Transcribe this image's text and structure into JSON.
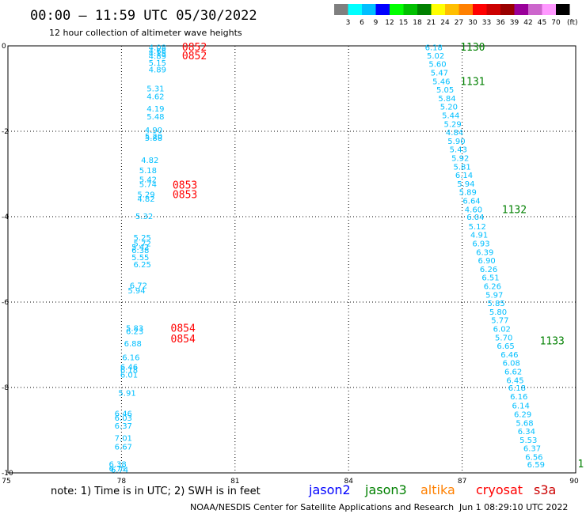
{
  "header": {
    "title": "00:00 – 11:59 UTC 05/30/2022",
    "subtitle": "12 hour collection of altimeter wave heights"
  },
  "colorbar": {
    "unit_label": "(ft)",
    "ticks": [
      "3",
      "6",
      "9",
      "12",
      "15",
      "18",
      "21",
      "24",
      "27",
      "30",
      "33",
      "36",
      "39",
      "42",
      "45",
      "70"
    ],
    "colors": [
      "#7f7f7f",
      "#00ffff",
      "#00bfff",
      "#0000ff",
      "#00ff00",
      "#00c000",
      "#008000",
      "#ffff00",
      "#ffbf00",
      "#ff8000",
      "#ff0000",
      "#cc0000",
      "#990000",
      "#990099",
      "#cc66cc",
      "#ff99ff",
      "#000000"
    ]
  },
  "chart_data": {
    "type": "scatter",
    "xlim": [
      75,
      90
    ],
    "ylim": [
      -10,
      0
    ],
    "x_ticks": [
      "75",
      "78",
      "81",
      "84",
      "87",
      "90"
    ],
    "y_ticks": [
      "0",
      "-2",
      "-4",
      "-6",
      "-8",
      "-10"
    ],
    "grid": true,
    "value_color": "#00bfff",
    "points": [
      {
        "x": 78.95,
        "y": -0.03,
        "v": "4.08"
      },
      {
        "x": 78.95,
        "y": -0.11,
        "v": "4.68"
      },
      {
        "x": 78.95,
        "y": -0.17,
        "v": "4.15"
      },
      {
        "x": 78.95,
        "y": -0.23,
        "v": "4.89"
      },
      {
        "x": 78.95,
        "y": -0.39,
        "v": "5.15"
      },
      {
        "x": 78.95,
        "y": -0.55,
        "v": "4.89"
      },
      {
        "x": 78.9,
        "y": -0.99,
        "v": "5.31"
      },
      {
        "x": 78.9,
        "y": -1.18,
        "v": "4.62"
      },
      {
        "x": 78.9,
        "y": -1.46,
        "v": "4.19"
      },
      {
        "x": 78.9,
        "y": -1.65,
        "v": "5.48"
      },
      {
        "x": 78.85,
        "y": -1.96,
        "v": "4.90"
      },
      {
        "x": 78.85,
        "y": -2.11,
        "v": "5.20"
      },
      {
        "x": 78.85,
        "y": -2.15,
        "v": "5.88"
      },
      {
        "x": 78.75,
        "y": -2.67,
        "v": "4.82"
      },
      {
        "x": 78.7,
        "y": -2.91,
        "v": "5.18"
      },
      {
        "x": 78.7,
        "y": -3.12,
        "v": "5.42"
      },
      {
        "x": 78.7,
        "y": -3.23,
        "v": "5.74"
      },
      {
        "x": 78.65,
        "y": -3.47,
        "v": "5.29"
      },
      {
        "x": 78.65,
        "y": -3.57,
        "v": "4.82"
      },
      {
        "x": 78.6,
        "y": -3.98,
        "v": "5.32"
      },
      {
        "x": 78.55,
        "y": -4.48,
        "v": "5.25"
      },
      {
        "x": 78.55,
        "y": -4.62,
        "v": "5.72"
      },
      {
        "x": 78.5,
        "y": -4.7,
        "v": "5.42"
      },
      {
        "x": 78.5,
        "y": -4.78,
        "v": "6.38"
      },
      {
        "x": 78.5,
        "y": -4.94,
        "v": "5.55"
      },
      {
        "x": 78.55,
        "y": -5.11,
        "v": "6.25"
      },
      {
        "x": 78.45,
        "y": -5.6,
        "v": "6.72"
      },
      {
        "x": 78.4,
        "y": -5.72,
        "v": "5.94"
      },
      {
        "x": 78.35,
        "y": -6.6,
        "v": "5.83"
      },
      {
        "x": 78.35,
        "y": -6.68,
        "v": "6.23"
      },
      {
        "x": 78.3,
        "y": -6.96,
        "v": "6.88"
      },
      {
        "x": 78.25,
        "y": -7.29,
        "v": "6.16"
      },
      {
        "x": 78.2,
        "y": -7.51,
        "v": "6.46"
      },
      {
        "x": 78.2,
        "y": -7.58,
        "v": "6.18"
      },
      {
        "x": 78.2,
        "y": -7.69,
        "v": "6.01"
      },
      {
        "x": 78.15,
        "y": -8.12,
        "v": "5.91"
      },
      {
        "x": 78.05,
        "y": -8.6,
        "v": "6.46"
      },
      {
        "x": 78.05,
        "y": -8.7,
        "v": "6.03"
      },
      {
        "x": 78.05,
        "y": -8.89,
        "v": "6.37"
      },
      {
        "x": 78.05,
        "y": -9.18,
        "v": "7.01"
      },
      {
        "x": 78.05,
        "y": -9.38,
        "v": "6.67"
      },
      {
        "x": 77.9,
        "y": -9.79,
        "v": "6.38"
      },
      {
        "x": 77.9,
        "y": -9.89,
        "v": "6.71"
      },
      {
        "x": 77.95,
        "y": -9.92,
        "v": "6.74"
      },
      {
        "x": 86.25,
        "y": -0.03,
        "v": "6.18"
      },
      {
        "x": 86.3,
        "y": -0.22,
        "v": "5.02"
      },
      {
        "x": 86.35,
        "y": -0.42,
        "v": "5.60"
      },
      {
        "x": 86.4,
        "y": -0.62,
        "v": "5.47"
      },
      {
        "x": 86.45,
        "y": -0.82,
        "v": "5.46"
      },
      {
        "x": 86.55,
        "y": -1.02,
        "v": "5.05"
      },
      {
        "x": 86.6,
        "y": -1.22,
        "v": "5.84"
      },
      {
        "x": 86.65,
        "y": -1.42,
        "v": "5.20"
      },
      {
        "x": 86.7,
        "y": -1.62,
        "v": "5.44"
      },
      {
        "x": 86.75,
        "y": -1.82,
        "v": "5.29"
      },
      {
        "x": 86.8,
        "y": -2.02,
        "v": "4.84"
      },
      {
        "x": 86.85,
        "y": -2.22,
        "v": "5.90"
      },
      {
        "x": 86.9,
        "y": -2.42,
        "v": "5.43"
      },
      {
        "x": 86.95,
        "y": -2.62,
        "v": "5.92"
      },
      {
        "x": 87.0,
        "y": -2.82,
        "v": "5.81"
      },
      {
        "x": 87.05,
        "y": -3.02,
        "v": "6.14"
      },
      {
        "x": 87.1,
        "y": -3.22,
        "v": "5.94"
      },
      {
        "x": 87.15,
        "y": -3.42,
        "v": "5.89"
      },
      {
        "x": 87.25,
        "y": -3.62,
        "v": "6.64"
      },
      {
        "x": 87.3,
        "y": -3.82,
        "v": "4.60"
      },
      {
        "x": 87.35,
        "y": -4.0,
        "v": "6.04"
      },
      {
        "x": 87.4,
        "y": -4.22,
        "v": "5.12"
      },
      {
        "x": 87.45,
        "y": -4.42,
        "v": "4.91"
      },
      {
        "x": 87.5,
        "y": -4.62,
        "v": "6.93"
      },
      {
        "x": 87.6,
        "y": -4.82,
        "v": "6.39"
      },
      {
        "x": 87.65,
        "y": -5.02,
        "v": "6.90"
      },
      {
        "x": 87.7,
        "y": -5.22,
        "v": "6.26"
      },
      {
        "x": 87.75,
        "y": -5.42,
        "v": "6.51"
      },
      {
        "x": 87.8,
        "y": -5.62,
        "v": "6.26"
      },
      {
        "x": 87.85,
        "y": -5.82,
        "v": "5.97"
      },
      {
        "x": 87.9,
        "y": -6.02,
        "v": "5.85"
      },
      {
        "x": 87.95,
        "y": -6.22,
        "v": "5.80"
      },
      {
        "x": 88.0,
        "y": -6.42,
        "v": "5.77"
      },
      {
        "x": 88.05,
        "y": -6.62,
        "v": "6.02"
      },
      {
        "x": 88.1,
        "y": -6.82,
        "v": "5.70"
      },
      {
        "x": 88.15,
        "y": -7.02,
        "v": "6.65"
      },
      {
        "x": 88.25,
        "y": -7.22,
        "v": "6.46"
      },
      {
        "x": 88.3,
        "y": -7.42,
        "v": "6.08"
      },
      {
        "x": 88.35,
        "y": -7.62,
        "v": "6.62"
      },
      {
        "x": 88.4,
        "y": -7.82,
        "v": "6.45"
      },
      {
        "x": 88.45,
        "y": -8.0,
        "v": "6.18"
      },
      {
        "x": 88.5,
        "y": -8.2,
        "v": "6.16"
      },
      {
        "x": 88.55,
        "y": -8.42,
        "v": "6.14"
      },
      {
        "x": 88.6,
        "y": -8.62,
        "v": "6.29"
      },
      {
        "x": 88.65,
        "y": -8.82,
        "v": "5.68"
      },
      {
        "x": 88.7,
        "y": -9.02,
        "v": "6.34"
      },
      {
        "x": 88.75,
        "y": -9.22,
        "v": "5.53"
      },
      {
        "x": 88.85,
        "y": -9.42,
        "v": "6.37"
      },
      {
        "x": 88.9,
        "y": -9.62,
        "v": "6.56"
      },
      {
        "x": 88.95,
        "y": -9.8,
        "v": "6.59"
      }
    ],
    "time_labels": [
      {
        "x": 79.6,
        "y": -0.02,
        "label": "0852",
        "color": "#ff0000"
      },
      {
        "x": 79.6,
        "y": -0.22,
        "label": "0852",
        "color": "#ff0000"
      },
      {
        "x": 79.35,
        "y": -3.25,
        "label": "0853",
        "color": "#ff0000"
      },
      {
        "x": 79.35,
        "y": -3.47,
        "label": "0853",
        "color": "#ff0000"
      },
      {
        "x": 79.3,
        "y": -6.6,
        "label": "0854",
        "color": "#ff0000"
      },
      {
        "x": 79.3,
        "y": -6.85,
        "label": "0854",
        "color": "#ff0000"
      },
      {
        "x": 86.95,
        "y": -0.02,
        "label": "1130",
        "color": "#008000"
      },
      {
        "x": 86.95,
        "y": -0.82,
        "label": "1131",
        "color": "#008000"
      },
      {
        "x": 88.05,
        "y": -3.82,
        "label": "1132",
        "color": "#008000"
      },
      {
        "x": 89.05,
        "y": -6.9,
        "label": "1133",
        "color": "#008000"
      },
      {
        "x": 90.05,
        "y": -9.78,
        "label": "1",
        "color": "#008000"
      }
    ]
  },
  "footer": {
    "note": "note: 1) Time is in UTC; 2) SWH is in feet",
    "satellites": [
      {
        "name": "jason2",
        "color": "#0000ff"
      },
      {
        "name": "jason3",
        "color": "#008000"
      },
      {
        "name": "altika",
        "color": "#ff8000"
      },
      {
        "name": "cryosat",
        "color": "#ff0000"
      },
      {
        "name": "s3a",
        "color": "#cc0000"
      }
    ],
    "credit": "NOAA/NESDIS Center for Satellite Applications and Research",
    "timestamp": "Jun  1 08:29:10 UTC 2022"
  }
}
